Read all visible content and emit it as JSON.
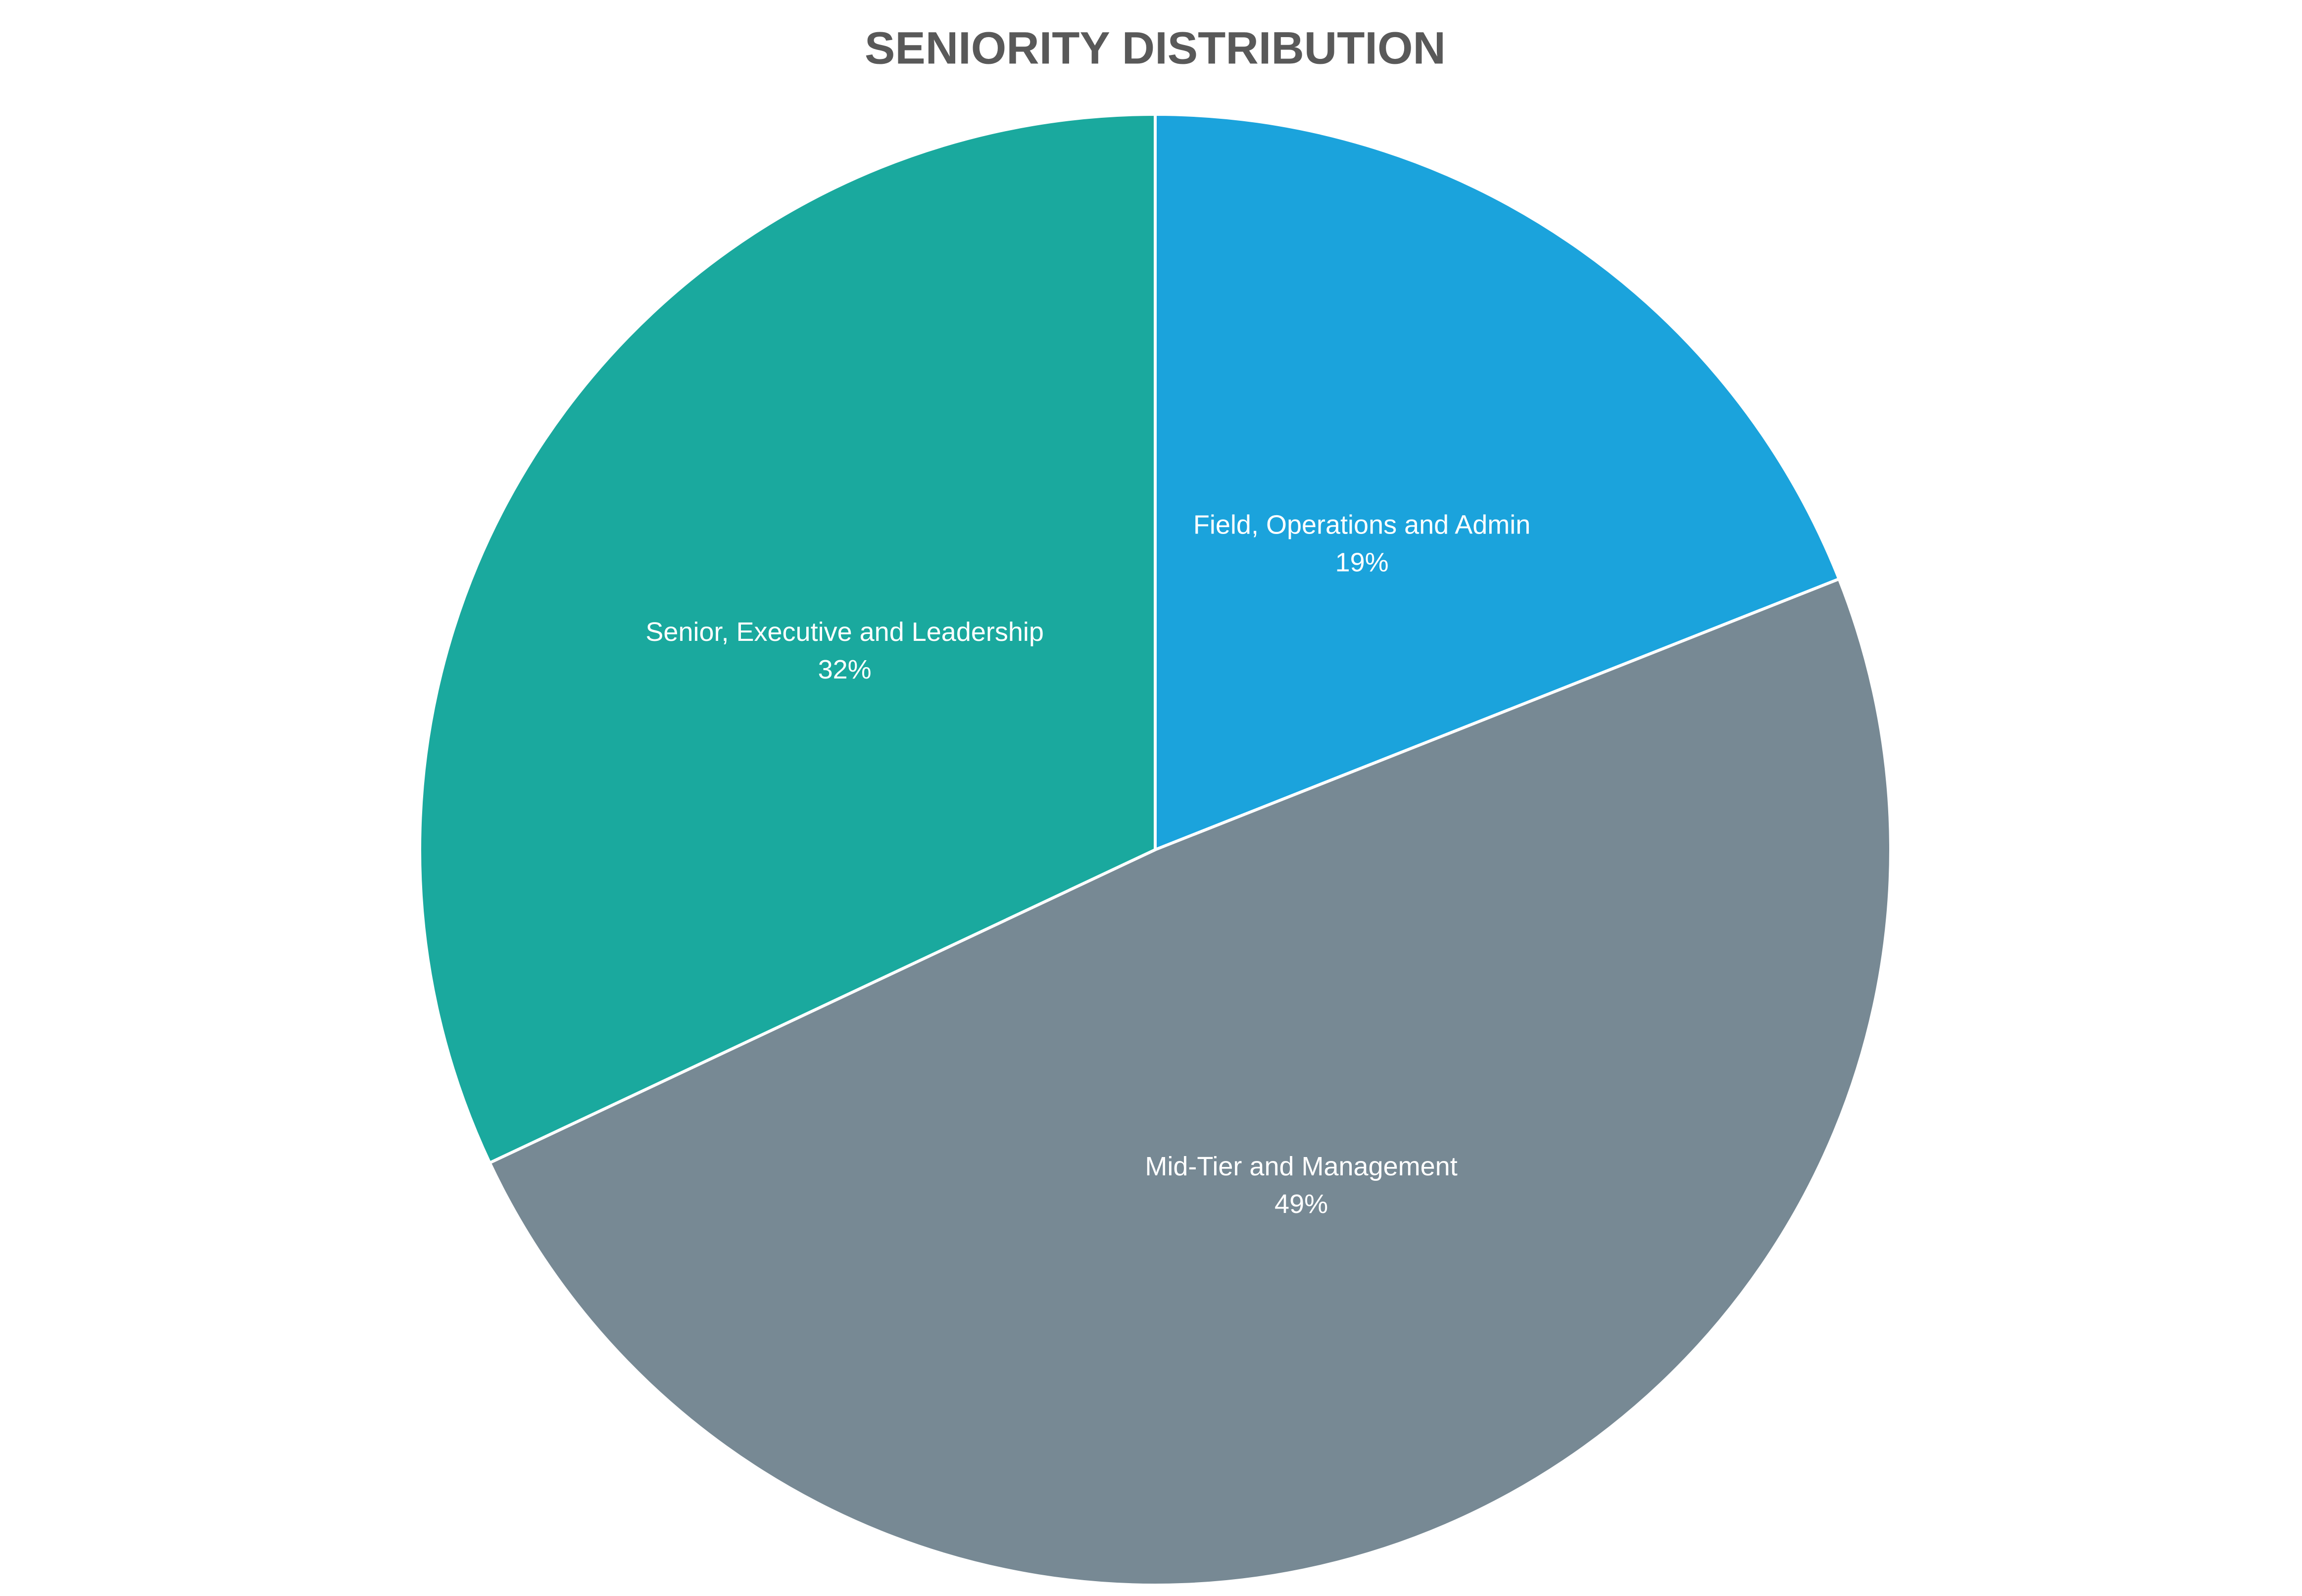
{
  "chart_data": {
    "type": "pie",
    "title": "SENIORITY DISTRIBUTION",
    "categories": [
      "Field, Operations and Admin",
      "Mid-Tier and Management",
      "Senior, Executive and Leadership"
    ],
    "values": [
      19,
      49,
      32
    ],
    "value_labels": [
      "19%",
      "49%",
      "32%"
    ],
    "colors": [
      "#1ba3dc",
      "#778994",
      "#1aa99e"
    ]
  }
}
